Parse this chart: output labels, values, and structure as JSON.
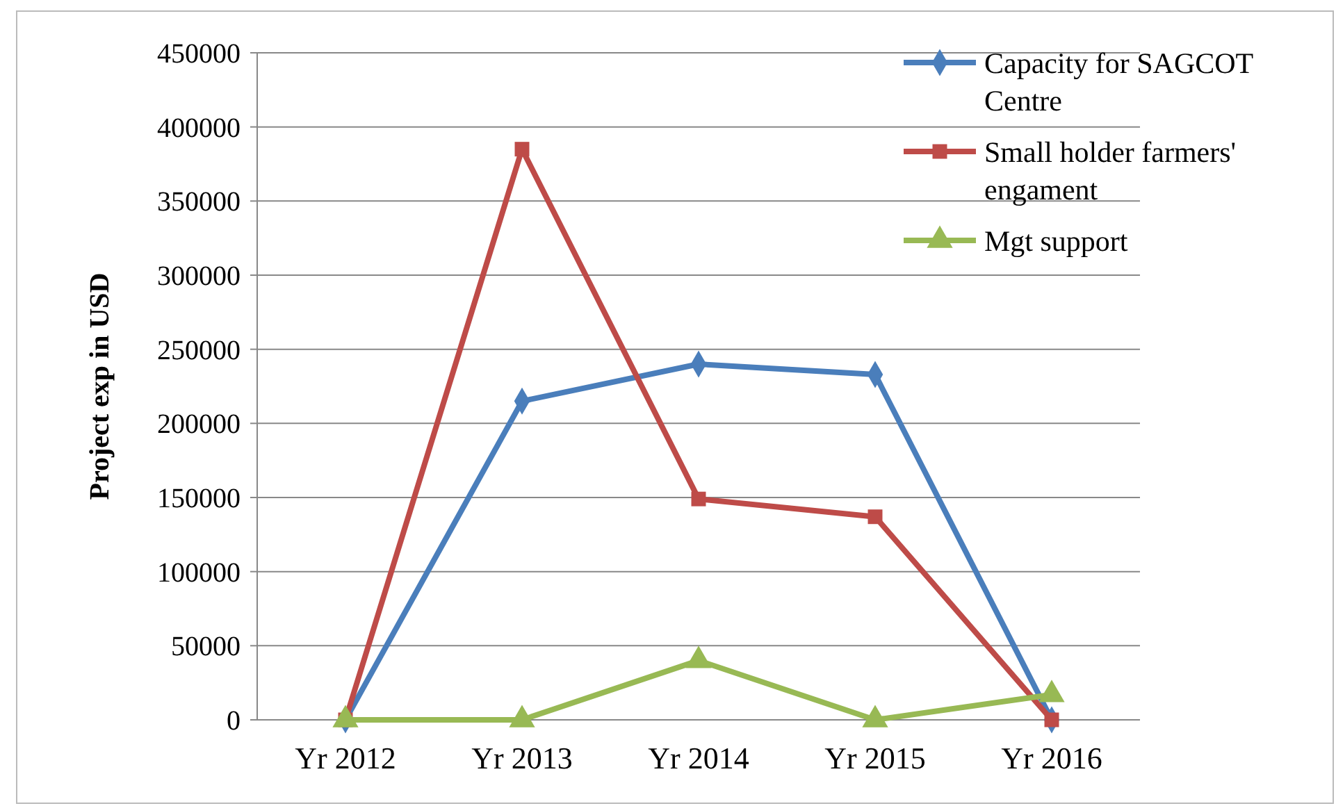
{
  "chart_data": {
    "type": "line",
    "ylabel": "Project exp in USD",
    "categories": [
      "Yr 2012",
      "Yr 2013",
      "Yr 2014",
      "Yr 2015",
      "Yr 2016"
    ],
    "series": [
      {
        "name": "Capacity for SAGCOT Centre",
        "color": "#4a7ebb",
        "marker": "diamond",
        "values": [
          0,
          215000,
          240000,
          233000,
          0
        ]
      },
      {
        "name": "Small holder farmers' engament",
        "color": "#be4b48",
        "marker": "square",
        "values": [
          0,
          385000,
          149000,
          137000,
          0
        ]
      },
      {
        "name": "Mgt support",
        "color": "#98b954",
        "marker": "triangle",
        "values": [
          0,
          0,
          40000,
          0,
          17000
        ]
      }
    ],
    "ylim": [
      0,
      450000
    ],
    "yticks": [
      0,
      50000,
      100000,
      150000,
      200000,
      250000,
      300000,
      350000,
      400000,
      450000
    ],
    "grid": "y",
    "legend": "top right",
    "line_style": "solid"
  }
}
